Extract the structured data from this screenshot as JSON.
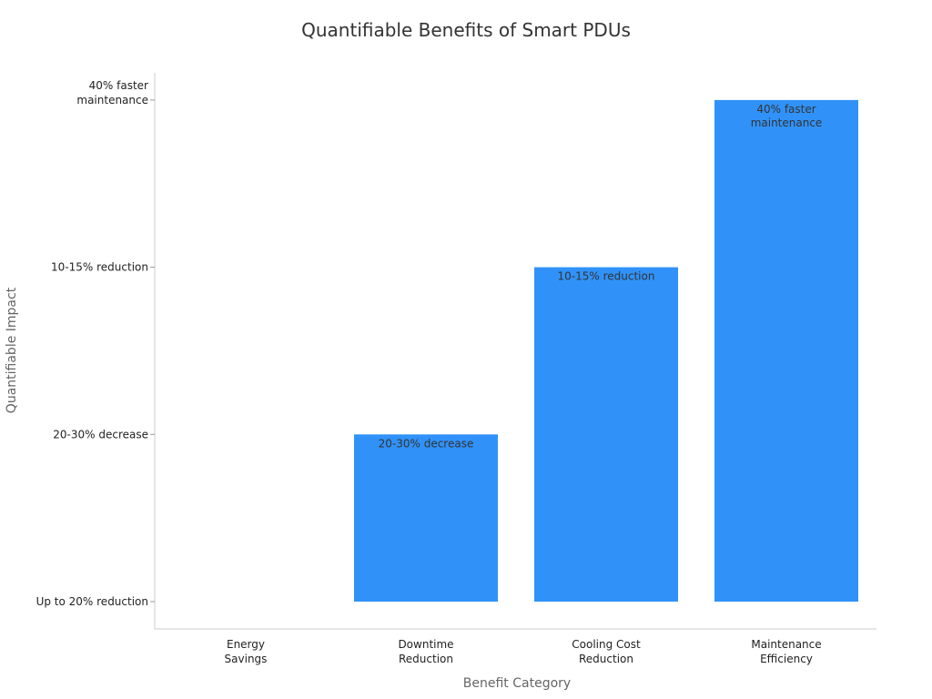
{
  "chart_data": {
    "type": "bar",
    "title": "Quantifiable Benefits of Smart PDUs",
    "xlabel": "Benefit Category",
    "ylabel": "Quantifiable Impact",
    "categories": [
      [
        "Energy",
        "Savings"
      ],
      [
        "Downtime",
        "Reduction"
      ],
      [
        "Cooling Cost",
        "Reduction"
      ],
      [
        "Maintenance",
        "Efficiency"
      ]
    ],
    "y_categories": [
      [
        "Up to 20% reduction"
      ],
      [
        "20-30% decrease"
      ],
      [
        "10-15% reduction"
      ],
      [
        "40% faster",
        "maintenance"
      ]
    ],
    "values": [
      0,
      1,
      2,
      3
    ],
    "data_labels": [
      [
        ""
      ],
      [
        "20-30% decrease"
      ],
      [
        "10-15% reduction"
      ],
      [
        "40% faster",
        "maintenance"
      ]
    ],
    "bar_color": "#3092f8",
    "grid": false,
    "legend": "none"
  }
}
